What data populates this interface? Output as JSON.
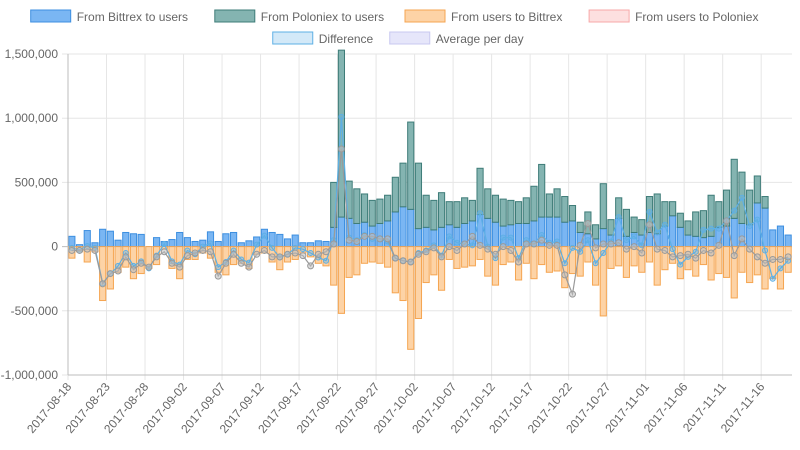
{
  "chart_data": {
    "type": "bar",
    "title": "",
    "xlabel": "",
    "ylabel": "",
    "ylim": [
      -1000000,
      1500000
    ],
    "y_ticks": [
      "1,500,000",
      "1,000,000",
      "500,000",
      "0",
      "-500,000",
      "-1,000,000"
    ],
    "y_tick_values": [
      1500000,
      1000000,
      500000,
      0,
      -500000,
      -1000000
    ],
    "x_tick_labels": [
      "2017-08-18",
      "2017-08-23",
      "2017-08-28",
      "2017-09-02",
      "2017-09-07",
      "2017-09-12",
      "2017-09-17",
      "2017-09-22",
      "2017-09-27",
      "2017-10-02",
      "2017-10-07",
      "2017-10-12",
      "2017-10-17",
      "2017-10-22",
      "2017-10-27",
      "2017-11-01",
      "2017-11-06",
      "2017-11-11",
      "2017-11-16"
    ],
    "x_tick_step_days": 5,
    "grid": true,
    "legend_position": "top",
    "legend": [
      {
        "name": "From Bittrex to users",
        "fill": "#7ab6f3",
        "stroke": "#3d8fe0"
      },
      {
        "name": "From Poloniex to users",
        "fill": "#84b4b1",
        "stroke": "#3e7c78"
      },
      {
        "name": "From users to Bittrex",
        "fill": "#fdd3a6",
        "stroke": "#f5a551"
      },
      {
        "name": "From users to Poloniex",
        "fill": "#fde0e0",
        "stroke": "#f7a8a8"
      },
      {
        "name": "Difference",
        "fill": "#d3e9f8",
        "stroke": "#5eb0e5"
      },
      {
        "name": "Average per day",
        "fill": "#e6e6fa",
        "stroke": "#c8c8f0"
      }
    ],
    "dates_start": "2017-08-18",
    "series": [
      {
        "name": "From Bittrex to users",
        "values": [
          80000,
          15000,
          125000,
          30000,
          135000,
          120000,
          50000,
          110000,
          100000,
          95000,
          0,
          70000,
          40000,
          55000,
          110000,
          70000,
          40000,
          50000,
          115000,
          40000,
          100000,
          110000,
          30000,
          45000,
          75000,
          135000,
          110000,
          95000,
          60000,
          90000,
          30000,
          30000,
          45000,
          40000,
          150000,
          230000,
          220000,
          180000,
          190000,
          160000,
          180000,
          200000,
          270000,
          310000,
          290000,
          140000,
          150000,
          130000,
          150000,
          170000,
          150000,
          180000,
          200000,
          250000,
          220000,
          190000,
          160000,
          170000,
          180000,
          180000,
          200000,
          230000,
          230000,
          230000,
          190000,
          200000,
          110000,
          100000,
          60000,
          140000,
          90000,
          220000,
          80000,
          110000,
          90000,
          110000,
          100000,
          160000,
          240000,
          150000,
          90000,
          80000,
          70000,
          80000,
          150000,
          160000,
          220000,
          180000,
          170000,
          340000,
          300000,
          130000,
          160000,
          90000
        ]
      },
      {
        "name": "From Poloniex to users",
        "values": [
          0,
          0,
          0,
          0,
          0,
          0,
          0,
          0,
          0,
          0,
          0,
          0,
          0,
          0,
          0,
          0,
          0,
          0,
          0,
          0,
          0,
          0,
          0,
          0,
          0,
          0,
          0,
          0,
          0,
          0,
          0,
          0,
          0,
          0,
          350000,
          1300000,
          290000,
          270000,
          220000,
          200000,
          190000,
          200000,
          270000,
          340000,
          680000,
          510000,
          250000,
          230000,
          270000,
          180000,
          200000,
          200000,
          160000,
          360000,
          230000,
          210000,
          210000,
          190000,
          170000,
          200000,
          270000,
          410000,
          180000,
          220000,
          200000,
          120000,
          80000,
          170000,
          110000,
          350000,
          120000,
          160000,
          210000,
          120000,
          120000,
          280000,
          310000,
          190000,
          110000,
          110000,
          110000,
          190000,
          210000,
          320000,
          200000,
          280000,
          460000,
          400000,
          270000,
          210000,
          90000,
          0,
          0,
          0
        ]
      },
      {
        "name": "From users to Bittrex",
        "values": [
          -90000,
          -40000,
          -120000,
          -40000,
          -420000,
          -330000,
          -200000,
          -160000,
          -250000,
          -210000,
          -170000,
          -140000,
          -20000,
          -170000,
          -250000,
          -100000,
          -100000,
          -50000,
          -90000,
          -200000,
          -220000,
          -140000,
          -130000,
          -170000,
          -60000,
          -50000,
          -120000,
          -180000,
          -120000,
          -100000,
          -50000,
          -80000,
          -130000,
          -150000,
          -300000,
          -520000,
          -240000,
          -220000,
          -130000,
          -120000,
          -130000,
          -160000,
          -360000,
          -420000,
          -800000,
          -560000,
          -280000,
          -220000,
          -340000,
          -100000,
          -170000,
          -160000,
          -150000,
          -100000,
          -230000,
          -300000,
          -140000,
          -120000,
          -260000,
          -130000,
          -250000,
          -140000,
          -200000,
          -190000,
          -320000,
          -210000,
          -230000,
          -120000,
          -300000,
          -540000,
          -170000,
          -150000,
          -240000,
          -150000,
          -200000,
          -120000,
          -300000,
          -180000,
          -130000,
          -250000,
          -180000,
          -230000,
          -140000,
          -260000,
          -210000,
          -240000,
          -400000,
          -200000,
          -280000,
          -220000,
          -330000,
          -250000,
          -330000,
          -200000
        ]
      },
      {
        "name": "From users to Poloniex",
        "values": [
          0,
          0,
          0,
          0,
          0,
          0,
          0,
          0,
          0,
          0,
          0,
          0,
          0,
          0,
          0,
          0,
          0,
          0,
          0,
          0,
          0,
          0,
          0,
          0,
          0,
          0,
          0,
          0,
          0,
          0,
          0,
          0,
          0,
          0,
          0,
          0,
          0,
          0,
          0,
          0,
          0,
          0,
          0,
          0,
          0,
          0,
          0,
          0,
          0,
          0,
          0,
          0,
          0,
          0,
          0,
          0,
          0,
          0,
          0,
          0,
          0,
          0,
          0,
          0,
          0,
          0,
          0,
          0,
          0,
          0,
          0,
          0,
          0,
          0,
          0,
          0,
          0,
          0,
          0,
          0,
          0,
          0,
          0,
          0,
          0,
          0,
          0,
          0,
          0,
          0,
          0,
          0,
          0,
          0
        ]
      },
      {
        "name": "Difference",
        "values": [
          -10000,
          -25000,
          5000,
          -10000,
          -285000,
          -210000,
          -150000,
          -50000,
          -150000,
          -115000,
          -170000,
          -70000,
          20000,
          -115000,
          -140000,
          -30000,
          -60000,
          0,
          25000,
          -160000,
          -120000,
          -30000,
          -100000,
          -125000,
          15000,
          85000,
          -10000,
          -85000,
          -60000,
          -10000,
          -20000,
          -50000,
          -85000,
          -110000,
          50000,
          1010000,
          70000,
          50000,
          90000,
          60000,
          60000,
          40000,
          -90000,
          -110000,
          -120000,
          -50000,
          -30000,
          10000,
          -70000,
          80000,
          30000,
          20000,
          10000,
          260000,
          0,
          -90000,
          70000,
          70000,
          -90000,
          50000,
          20000,
          90000,
          30000,
          40000,
          -130000,
          -10000,
          -40000,
          50000,
          -130000,
          -50000,
          40000,
          230000,
          50000,
          80000,
          10000,
          270000,
          110000,
          170000,
          -20000,
          -140000,
          -80000,
          -40000,
          130000,
          140000,
          140000,
          200000,
          280000,
          380000,
          160000,
          210000,
          -30000,
          -250000,
          -170000,
          -110000
        ]
      },
      {
        "name": "Average per day",
        "values": [
          -30000,
          -30000,
          -20000,
          -30000,
          -290000,
          -210000,
          -190000,
          -80000,
          -180000,
          -130000,
          -160000,
          -80000,
          -40000,
          -130000,
          -160000,
          -70000,
          -50000,
          -30000,
          -40000,
          -230000,
          -130000,
          -60000,
          -130000,
          -160000,
          -60000,
          -30000,
          -80000,
          -80000,
          -60000,
          -50000,
          -70000,
          -150000,
          -60000,
          -40000,
          20000,
          760000,
          50000,
          40000,
          80000,
          80000,
          60000,
          60000,
          -90000,
          -110000,
          -120000,
          -60000,
          -40000,
          -10000,
          -80000,
          0,
          -30000,
          20000,
          80000,
          10000,
          -20000,
          -60000,
          0,
          -30000,
          -120000,
          20000,
          20000,
          50000,
          10000,
          10000,
          -220000,
          -370000,
          10000,
          180000,
          -10000,
          20000,
          20000,
          30000,
          -20000,
          0,
          -50000,
          170000,
          -20000,
          -30000,
          -80000,
          -70000,
          -60000,
          -90000,
          -30000,
          -50000,
          10000,
          200000,
          -70000,
          60000,
          -20000,
          -80000,
          -130000,
          -100000,
          -100000,
          -80000
        ]
      }
    ]
  }
}
